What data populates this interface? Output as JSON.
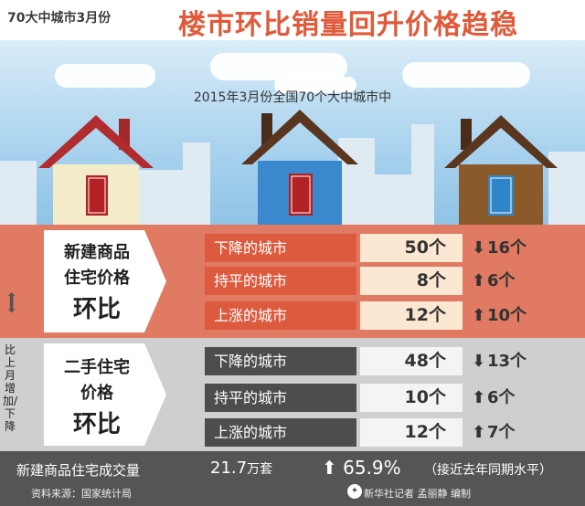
{
  "header": {
    "tag": "70大中城市3月份",
    "headline": "楼市环比销量回升价格趋稳"
  },
  "subtitle": "2015年3月份全国70个大中城市中",
  "colors": {
    "accent": "#e05a3b",
    "red_section": "#e07a63",
    "red_row_label": "#dc5a3e",
    "gray_section": "#cfcfcf",
    "gray_row_label": "#4d4d4d",
    "footer": "#555555"
  },
  "new_homes": {
    "line1": "新建商品",
    "line2": "住宅价格",
    "line3": "环比",
    "rows": [
      {
        "label": "下降的城市",
        "value": "50个",
        "direction": "down",
        "arrow": "⬇",
        "change": "16个"
      },
      {
        "label": "持平的城市",
        "value": "8个",
        "direction": "up",
        "arrow": "⬆",
        "change": "6个"
      },
      {
        "label": "上涨的城市",
        "value": "12个",
        "direction": "up",
        "arrow": "⬆",
        "change": "10个"
      }
    ]
  },
  "second_hand": {
    "line1": "二手住宅",
    "line2": "价格",
    "line3": "环比",
    "rows": [
      {
        "label": "下降的城市",
        "value": "48个",
        "direction": "down",
        "arrow": "⬇",
        "change": "13个"
      },
      {
        "label": "持平的城市",
        "value": "10个",
        "direction": "up",
        "arrow": "⬆",
        "change": "6个"
      },
      {
        "label": "上涨的城市",
        "value": "12个",
        "direction": "up",
        "arrow": "⬆",
        "change": "7个"
      }
    ]
  },
  "side_note": "比上月增加/下降",
  "footer": {
    "label": "新建商品住宅成交量",
    "amount_value": "21.7",
    "amount_unit": "万套",
    "pct_arrow": "⬆",
    "pct": "65.9%",
    "note": "（接近去年同期水平）",
    "source": "资料来源：国家统计局",
    "credit": "新华社记者  孟丽静  编制"
  }
}
